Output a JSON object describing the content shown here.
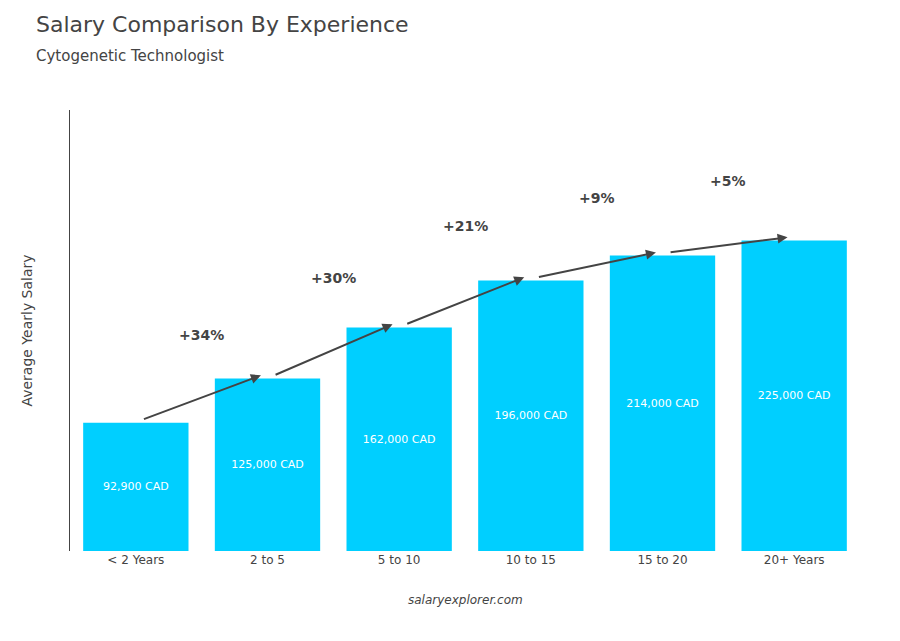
{
  "chart_data": {
    "type": "bar",
    "title": "Salary Comparison By Experience",
    "subtitle": "Cytogenetic Technologist",
    "ylabel": "Average Yearly Salary",
    "caption": "salaryexplorer.com",
    "categories": [
      "< 2 Years",
      "2 to 5",
      "5 to 10",
      "10 to 15",
      "15 to 20",
      "20+ Years"
    ],
    "values": [
      92900,
      125000,
      162000,
      196000,
      214000,
      225000
    ],
    "value_labels": [
      "92,900 CAD",
      "125,000 CAD",
      "162,000 CAD",
      "196,000 CAD",
      "214,000 CAD",
      "225,000 CAD"
    ],
    "data_labels": true,
    "annotations": [
      "+34%",
      "+30%",
      "+21%",
      "+9%",
      "+5%"
    ],
    "color": "#00cfff",
    "ylim": [
      0,
      319500
    ],
    "tick_labels": "x",
    "grid": false
  }
}
